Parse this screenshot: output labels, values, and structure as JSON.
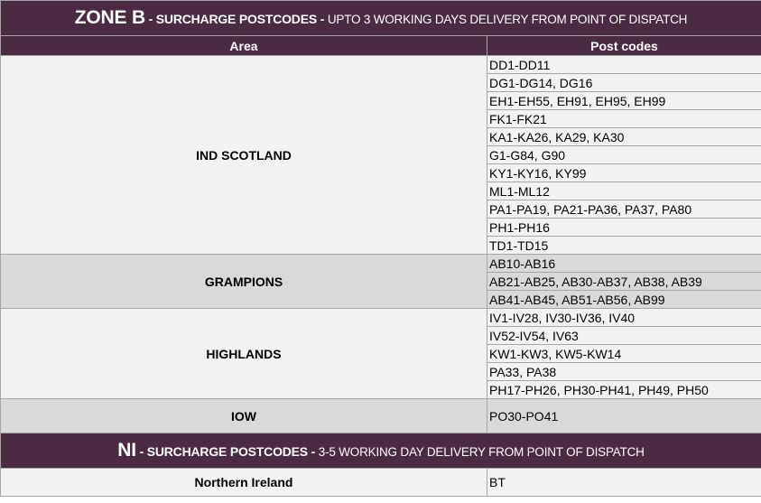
{
  "zone_b": {
    "title_main": "ZONE B",
    "title_sep1": " - ",
    "title_bold": "SURCHARGE POSTCODES",
    "title_sep2": " - ",
    "title_rest": "UPTO 3 WORKING DAYS DELIVERY FROM POINT OF DISPATCH",
    "col_area": "Area",
    "col_postcodes": "Post codes",
    "groups": [
      {
        "area": "IND SCOTLAND",
        "shade": "light",
        "postcodes": [
          "DD1-DD11",
          "DG1-DG14, DG16",
          "EH1-EH55, EH91, EH95, EH99",
          "FK1-FK21",
          "KA1-KA26, KA29, KA30",
          "G1-G84, G90",
          "KY1-KY16, KY99",
          "ML1-ML12",
          "PA1-PA19, PA21-PA36, PA37, PA80",
          "PH1-PH16",
          "TD1-TD15"
        ]
      },
      {
        "area": "GRAMPIONS",
        "shade": "gray",
        "postcodes": [
          "AB10-AB16",
          "AB21-AB25, AB30-AB37, AB38, AB39",
          "AB41-AB45, AB51-AB56, AB99"
        ]
      },
      {
        "area": "HIGHLANDS",
        "shade": "light",
        "postcodes": [
          "IV1-IV28, IV30-IV36, IV40",
          "IV52-IV54, IV63",
          "KW1-KW3, KW5-KW14",
          "PA33, PA38",
          "PH17-PH26, PH30-PH41, PH49, PH50"
        ]
      },
      {
        "area": "IOW",
        "shade": "gray",
        "postcodes": [
          "PO30-PO41"
        ]
      }
    ]
  },
  "ni": {
    "title_main": "NI",
    "title_sep1": " -  ",
    "title_bold": "SURCHARGE POSTCODES",
    "title_sep2": " - ",
    "title_rest": "3-5 WORKING DAY DELIVERY FROM POINT OF DISPATCH",
    "area": "Northern Ireland",
    "postcodes": "BT"
  },
  "colors": {
    "header_bg": "#4b2a43",
    "row_light": "#f2f2f2",
    "row_gray": "#d9d9d9"
  }
}
